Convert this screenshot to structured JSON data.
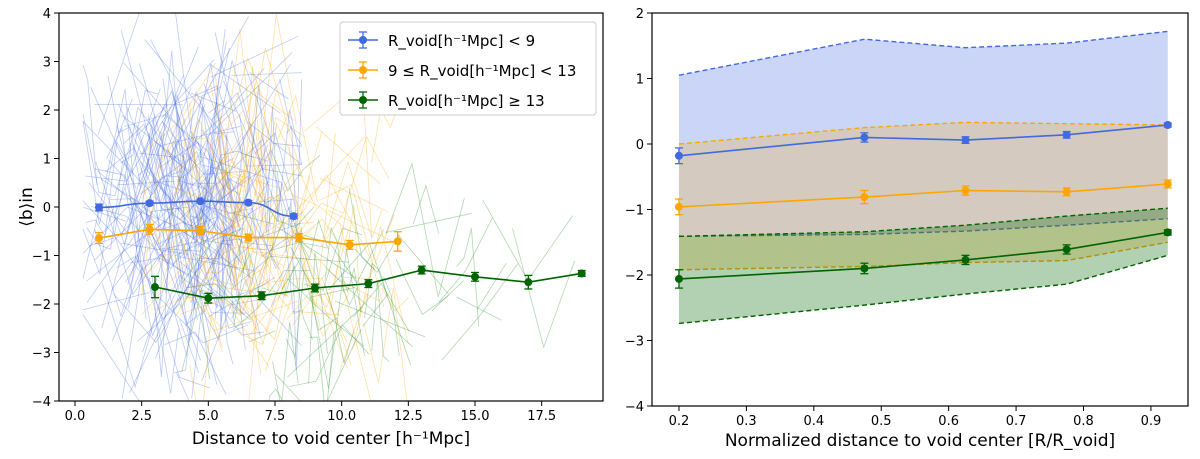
{
  "chart_data": [
    {
      "type": "line",
      "title": "",
      "xlabel": "Distance to void center [h⁻¹Mpc]",
      "ylabel": "⟨b⟩in",
      "xlim": [
        -0.6,
        19.8
      ],
      "ylim": [
        -4,
        4
      ],
      "xticks": [
        0.0,
        2.5,
        5.0,
        7.5,
        10.0,
        12.5,
        15.0,
        17.5
      ],
      "xtick_labels": [
        "0.0",
        "2.5",
        "5.0",
        "7.5",
        "10.0",
        "12.5",
        "15.0",
        "17.5"
      ],
      "yticks": [
        -4,
        -3,
        -2,
        -1,
        0,
        1,
        2,
        3,
        4
      ],
      "ytick_labels": [
        "−4",
        "−3",
        "−2",
        "−1",
        "0",
        "1",
        "2",
        "3",
        "4"
      ],
      "grid": false,
      "legend_position": "top-right",
      "background_lines": "many thin individual-void profiles per bin (blue, orange, green)",
      "series": [
        {
          "name": "R_void[h⁻¹Mpc] < 9",
          "color": "#4169e1",
          "x": [
            0.9,
            2.8,
            4.7,
            6.5,
            8.2
          ],
          "y": [
            -0.01,
            0.08,
            0.12,
            0.09,
            -0.19
          ],
          "err": [
            0.07,
            0.04,
            0.04,
            0.04,
            0.05
          ]
        },
        {
          "name": "9 ≤ R_void[h⁻¹Mpc] < 13",
          "color": "#ffa500",
          "x": [
            0.9,
            2.8,
            4.7,
            6.5,
            8.4,
            10.3,
            12.1
          ],
          "y": [
            -0.64,
            -0.46,
            -0.49,
            -0.63,
            -0.63,
            -0.78,
            -0.71
          ],
          "err": [
            0.11,
            0.1,
            0.09,
            0.07,
            0.08,
            0.09,
            0.2
          ]
        },
        {
          "name": "R_void[h⁻¹Mpc] ≥ 13",
          "color": "#006400",
          "x": [
            3.0,
            5.0,
            7.0,
            9.0,
            11.0,
            13.0,
            15.0,
            17.0,
            19.0
          ],
          "y": [
            -1.65,
            -1.88,
            -1.83,
            -1.67,
            -1.58,
            -1.3,
            -1.44,
            -1.55,
            -1.37
          ],
          "err": [
            0.22,
            0.1,
            0.08,
            0.08,
            0.08,
            0.08,
            0.09,
            0.14,
            0.06
          ]
        }
      ]
    },
    {
      "type": "line",
      "title": "",
      "xlabel": "Normalized distance to void center [R/R_void]",
      "ylabel": "",
      "xlim": [
        0.16,
        0.955
      ],
      "ylim": [
        -4,
        2
      ],
      "xticks": [
        0.2,
        0.3,
        0.4,
        0.5,
        0.6,
        0.7,
        0.8,
        0.9
      ],
      "xtick_labels": [
        "0.2",
        "0.3",
        "0.4",
        "0.5",
        "0.6",
        "0.7",
        "0.8",
        "0.9"
      ],
      "yticks": [
        -4,
        -3,
        -2,
        -1,
        0,
        1,
        2
      ],
      "ytick_labels": [
        "−4",
        "−3",
        "−2",
        "−1",
        "0",
        "1",
        "2"
      ],
      "grid": false,
      "x": [
        0.2,
        0.475,
        0.625,
        0.775,
        0.925
      ],
      "series": [
        {
          "name": "R_void < 9",
          "color": "#4169e1",
          "y": [
            -0.18,
            0.1,
            0.06,
            0.14,
            0.29
          ],
          "err": [
            0.12,
            0.07,
            0.05,
            0.05,
            0.03
          ],
          "band_upper": [
            1.05,
            1.6,
            1.47,
            1.54,
            1.72
          ],
          "band_lower": [
            -1.41,
            -1.38,
            -1.33,
            -1.24,
            -1.14
          ]
        },
        {
          "name": "9 ≤ R_void < 13",
          "color": "#ffa500",
          "y": [
            -0.96,
            -0.81,
            -0.71,
            -0.73,
            -0.61
          ],
          "err": [
            0.12,
            0.1,
            0.07,
            0.06,
            0.06
          ],
          "band_upper": [
            0.0,
            0.25,
            0.33,
            0.31,
            0.29
          ],
          "band_lower": [
            -1.92,
            -1.87,
            -1.81,
            -1.78,
            -1.5
          ]
        },
        {
          "name": "R_void ≥ 13",
          "color": "#006400",
          "y": [
            -2.06,
            -1.9,
            -1.77,
            -1.61,
            -1.35
          ],
          "err": [
            0.14,
            0.08,
            0.07,
            0.07,
            0.04
          ],
          "band_upper": [
            -1.41,
            -1.34,
            -1.24,
            -1.1,
            -0.98
          ],
          "band_lower": [
            -2.74,
            -2.46,
            -2.29,
            -2.14,
            -1.7
          ]
        }
      ]
    }
  ]
}
